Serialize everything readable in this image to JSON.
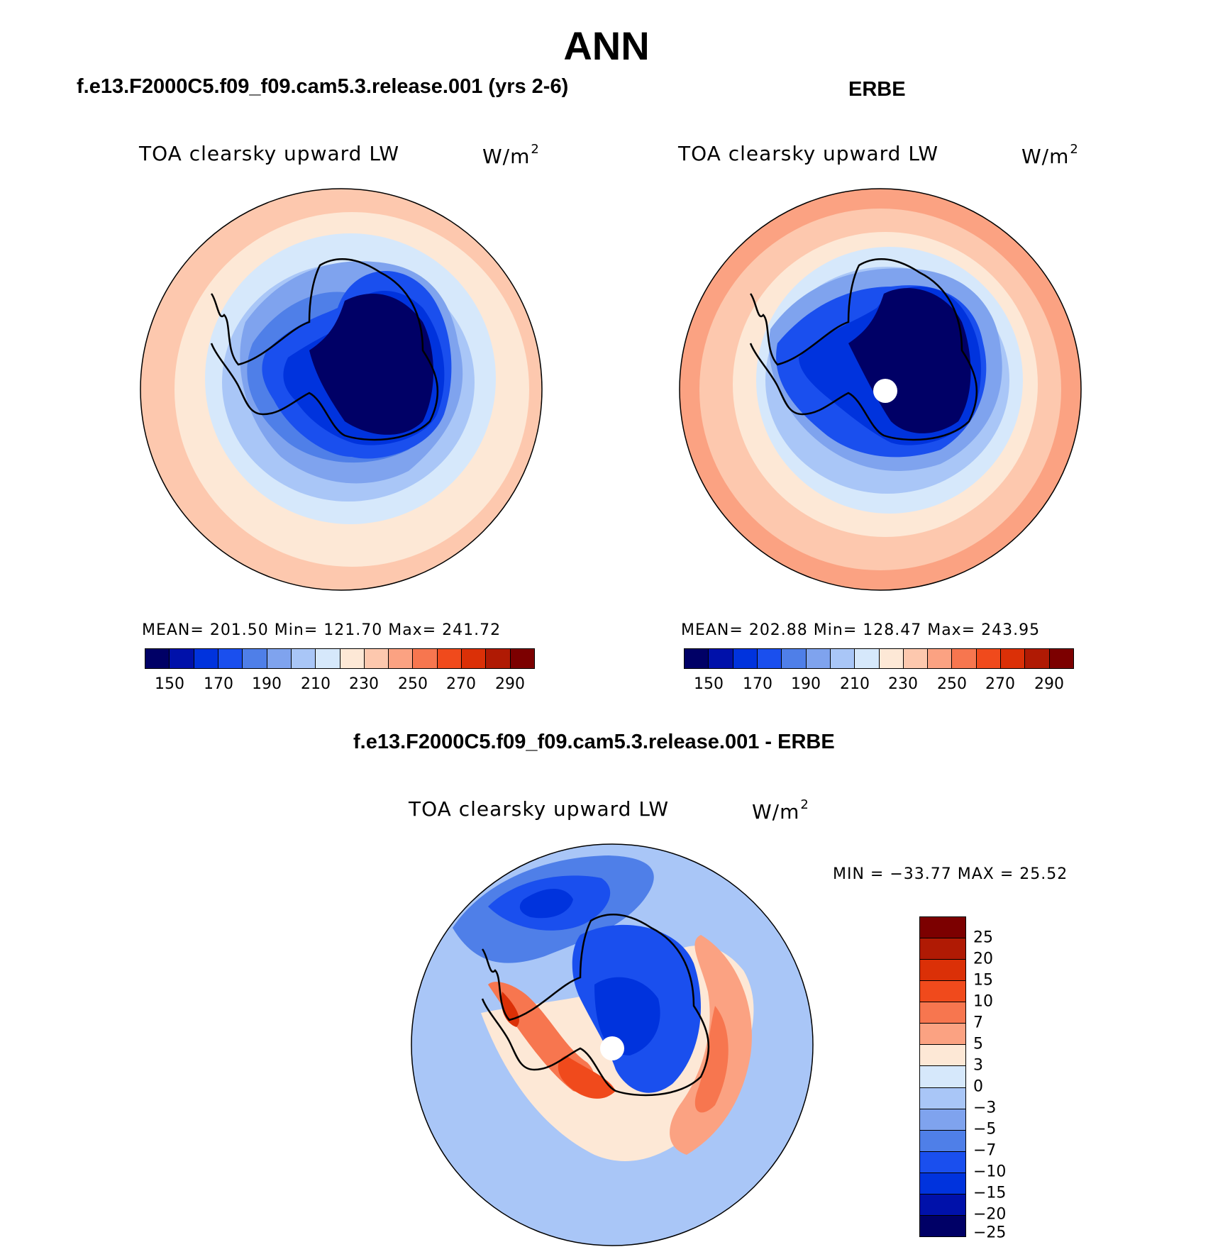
{
  "title": "ANN",
  "panels": {
    "model": {
      "heading": "f.e13.F2000C5.f09_f09.cam5.3.release.001 (yrs 2-6)",
      "field": "TOA clearsky upward LW",
      "units": "W/m",
      "units_sup": "2",
      "stats": "MEAN= 201.50   Min= 121.70   Max= 241.72"
    },
    "obs": {
      "heading": "ERBE",
      "field": "TOA clearsky upward LW",
      "units": "W/m",
      "units_sup": "2",
      "stats": "MEAN= 202.88   Min= 128.47   Max= 243.95"
    },
    "diff": {
      "heading": "f.e13.F2000C5.f09_f09.cam5.3.release.001 - ERBE",
      "field": "TOA clearsky upward LW",
      "units": "W/m",
      "units_sup": "2",
      "stats": "MIN = −33.77 MAX =   25.52"
    }
  },
  "abs_colorbar": {
    "colors": [
      "#000066",
      "#0011aa",
      "#0033dd",
      "#1a4fee",
      "#4f7fe8",
      "#7fa3ee",
      "#a9c6f7",
      "#d6e8fb",
      "#fde8d6",
      "#fdc8ae",
      "#fba282",
      "#f7764f",
      "#f04a1c",
      "#db3007",
      "#b01a04",
      "#7c0000"
    ],
    "labels": [
      "150",
      "170",
      "190",
      "210",
      "230",
      "250",
      "270",
      "290"
    ]
  },
  "diff_colorbar": {
    "colors": [
      "#7c0000",
      "#b01a04",
      "#db3007",
      "#f04a1c",
      "#f7764f",
      "#fba282",
      "#fde8d6",
      "#d6e8fb",
      "#a9c6f7",
      "#7fa3ee",
      "#4f7fe8",
      "#1a4fee",
      "#0033dd",
      "#0011aa",
      "#000066"
    ],
    "labels": [
      "25",
      "20",
      "15",
      "10",
      "7",
      "5",
      "3",
      "0",
      "−3",
      "−5",
      "−7",
      "−10",
      "−15",
      "−20",
      "−25"
    ]
  }
}
